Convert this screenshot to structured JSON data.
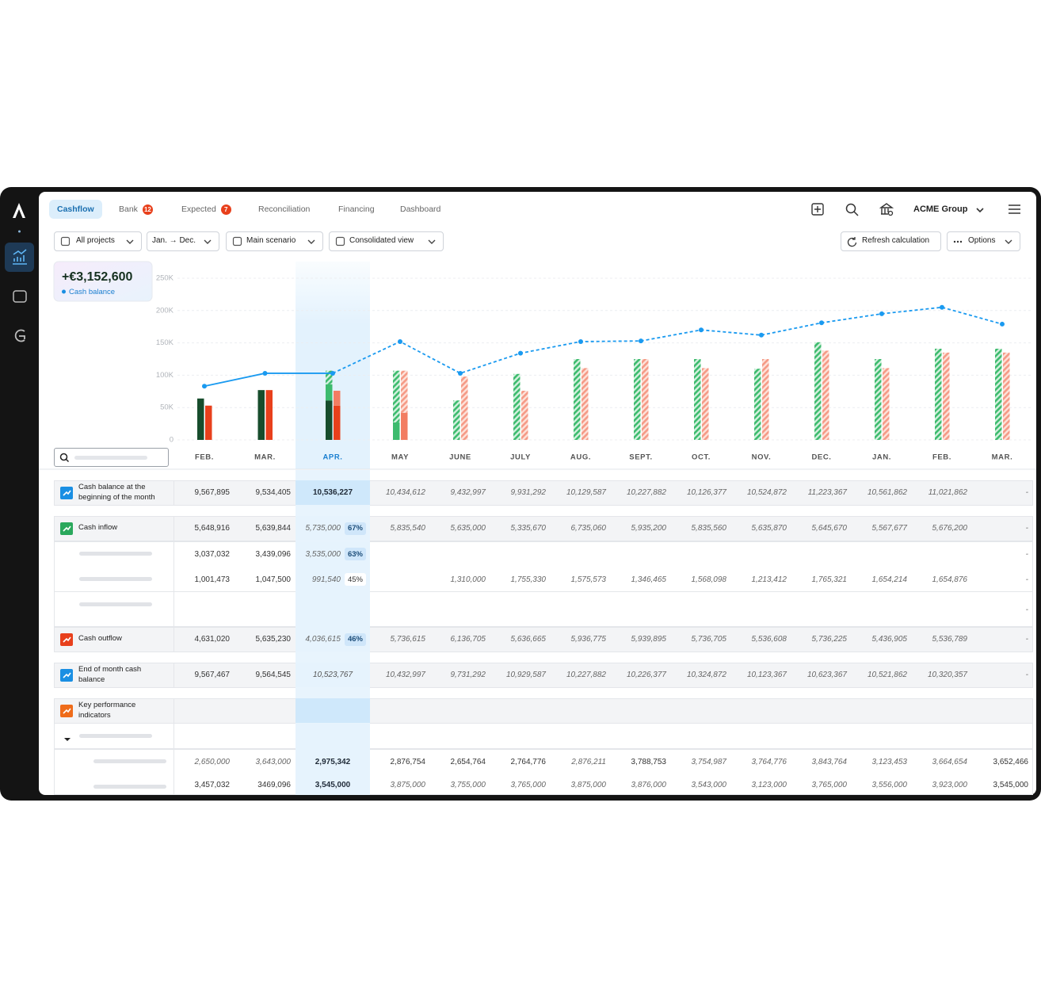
{
  "nav": {
    "tabs": [
      {
        "label": "Cashflow"
      },
      {
        "label": "Bank",
        "badge": 12
      },
      {
        "label": "Expected",
        "badge": 7
      },
      {
        "label": "Reconciliation"
      },
      {
        "label": "Financing"
      },
      {
        "label": "Dashboard"
      }
    ],
    "company": "ACME Group"
  },
  "filters": [
    "All projects",
    "Jan. → Dec.",
    "Main scenario",
    "Consolidated view"
  ],
  "actions": [
    "Refresh calculation",
    "Options"
  ],
  "kpi": {
    "value": "+€3,152,600",
    "label": "Cash balance"
  },
  "chart_data": {
    "type": "bar",
    "categories": [
      "FEB.",
      "MAR.",
      "APR.",
      "MAY",
      "JUNE",
      "JULY",
      "AUG.",
      "SEPT.",
      "OCT.",
      "NOV.",
      "DEC.",
      "JAN.",
      "FEB.",
      "MAR."
    ],
    "selected_category": 2,
    "ylim": [
      0,
      250000
    ],
    "yticks": [
      0,
      {
        "value": 50000,
        "label": "50K"
      },
      {
        "value": 100000,
        "label": "100K"
      },
      {
        "value": 150000,
        "label": "150K"
      },
      {
        "value": 200000,
        "label": "200K"
      },
      {
        "value": 250000,
        "label": "250K"
      }
    ],
    "grid": true,
    "line": {
      "color": "#1a9af0",
      "values": [
        83000,
        103000,
        103000,
        152000,
        103000,
        134000,
        152000,
        153000,
        170000,
        162000,
        181000,
        195000,
        205000,
        179000
      ]
    },
    "series": [
      {
        "color": "#174d2c",
        "hatched": false,
        "values": [
          64000,
          77000,
          61000,
          null,
          null,
          null,
          null,
          null,
          null,
          null,
          null,
          null,
          null,
          null
        ]
      },
      {
        "color": "#3dbb6e",
        "hatched": false,
        "values": [
          null,
          null,
          25000,
          27000,
          null,
          null,
          null,
          null,
          null,
          null,
          null,
          null,
          null,
          null
        ]
      },
      {
        "color": "#3dbb6e",
        "hatched": true,
        "values": [
          null,
          null,
          21000,
          80000,
          61000,
          102000,
          125000,
          125000,
          125000,
          110000,
          151000,
          125000,
          141000,
          141000
        ]
      },
      {
        "color": "#e8401c",
        "hatched": false,
        "values": [
          53000,
          77000,
          53000,
          null,
          null,
          null,
          null,
          null,
          null,
          null,
          null,
          null,
          null,
          null
        ]
      },
      {
        "color": "#f27d62",
        "hatched": false,
        "values": [
          null,
          null,
          23000,
          42000,
          null,
          null,
          null,
          null,
          null,
          null,
          null,
          null,
          null,
          null
        ]
      },
      {
        "color": "#f59a86",
        "hatched": true,
        "values": [
          null,
          null,
          null,
          65000,
          98000,
          76000,
          111000,
          125000,
          111000,
          125000,
          138000,
          111000,
          135000,
          135000
        ]
      }
    ]
  },
  "table": {
    "rows": [
      {
        "label": "Cash balance at the beginning of the month",
        "cells": [
          "9,567,895",
          "9,534,405",
          "10,536,227",
          "10,434,612",
          "9,432,997",
          "9,931,292",
          "10,129,587",
          "10,227,882",
          "10,126,377",
          "10,524,872",
          "11,223,367",
          "10,561,862",
          "11,021,862",
          "-"
        ]
      },
      {
        "label": "Cash inflow",
        "cells": [
          "5,648,916",
          "5,639,844",
          {
            "value": "5,735,000",
            "badge": "67%"
          },
          "5,835,540",
          "5,635,000",
          "5,335,670",
          "6,735,060",
          "5,935,200",
          "5,835,560",
          "5,635,870",
          "5,645,670",
          "5,567,677",
          "5,676,200",
          "-"
        ]
      },
      {
        "cells": [
          "3,037,032",
          "3,439,096",
          {
            "value": "3,535,000",
            "badge": "63%"
          },
          null,
          null,
          null,
          null,
          null,
          null,
          null,
          null,
          null,
          null,
          "-"
        ]
      },
      {
        "cells": [
          "1,001,473",
          "1,047,500",
          {
            "value": "991,540",
            "badge": "45%"
          },
          null,
          "1,310,000",
          "1,755,330",
          "1,575,573",
          "1,346,465",
          "1,568,098",
          "1,213,412",
          "1,765,321",
          "1,654,214",
          "1,654,876",
          "-"
        ]
      },
      {
        "cells": [
          null,
          null,
          null,
          null,
          null,
          null,
          null,
          null,
          null,
          null,
          null,
          null,
          null,
          "-"
        ]
      },
      {
        "label": "Cash outflow",
        "cells": [
          "4,631,020",
          "5,635,230",
          {
            "value": "4,036,615",
            "badge": "46%"
          },
          "5,736,615",
          "6,136,705",
          "5,636,665",
          "5,936,775",
          "5,939,895",
          "5,736,705",
          "5,536,608",
          "5,736,225",
          "5,436,905",
          "5,536,789",
          "-"
        ]
      },
      {
        "label": "End of month cash balance",
        "cells": [
          "9,567,467",
          "9,564,545",
          "10,523,767",
          "10,432,997",
          "9,731,292",
          "10,929,587",
          "10,227,882",
          "10,226,377",
          "10,324,872",
          "10,123,367",
          "10,623,367",
          "10,521,862",
          "10,320,357",
          "-"
        ]
      },
      {
        "label": "Key performance indicators"
      },
      {},
      {
        "cells": [
          "2,650,000",
          "3,643,000",
          "2,975,342",
          "2,876,754",
          "2,654,764",
          "2,764,776",
          "2,876,211",
          "3,788,753",
          "3,754,987",
          "3,764,776",
          "3,843,764",
          "3,123,453",
          "3,664,654",
          "3,652,466"
        ]
      },
      {
        "cells": [
          "3,457,032",
          "3469,096",
          "3,545,000",
          "3,875,000",
          "3,755,000",
          "3,765,000",
          "3,875,000",
          "3,876,000",
          "3,543,000",
          "3,123,000",
          "3,765,000",
          "3,556,000",
          "3,923,000",
          "3,545,000"
        ]
      }
    ]
  }
}
